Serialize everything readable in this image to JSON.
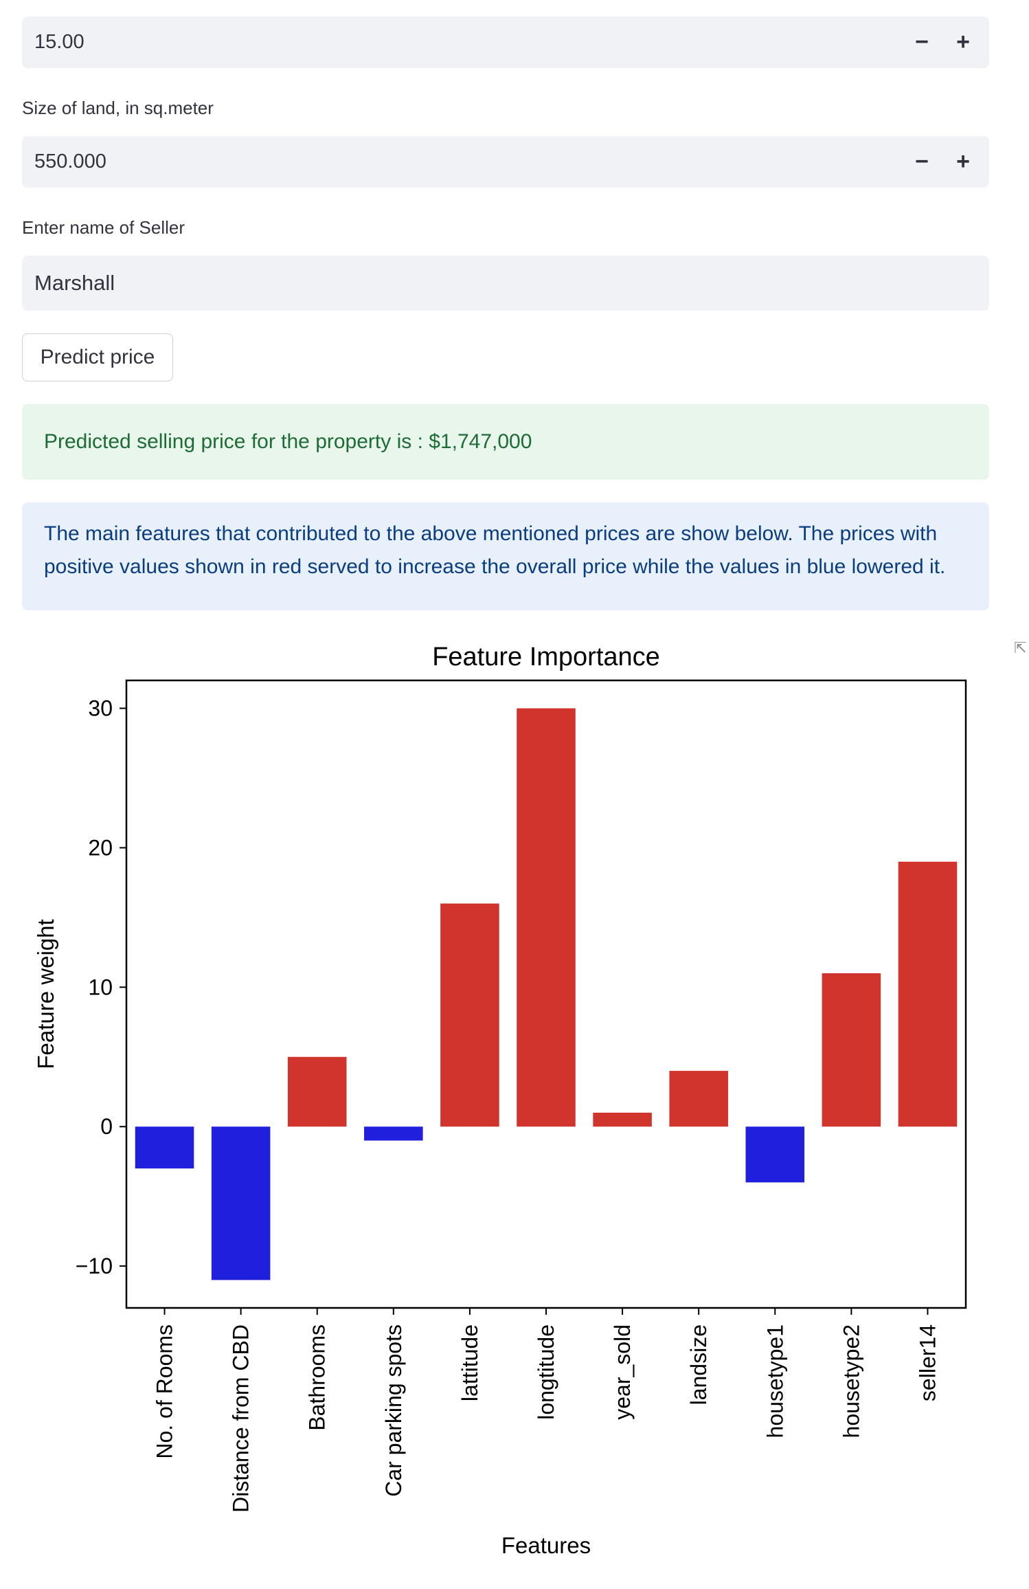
{
  "inputs": {
    "first_value": "15.00",
    "land_label": "Size of land, in sq.meter",
    "land_value": "550.000",
    "seller_label": "Enter name of Seller",
    "seller_value": "Marshall",
    "minus": "−",
    "plus": "+"
  },
  "predict_button": "Predict price",
  "success_message": "Predicted selling price for the property is : $1,747,000",
  "info_message": "The main features that contributed to the above mentioned prices are show below. The prices with positive values shown in red served to increase the overall price while the values in blue lowered it.",
  "colors": {
    "positive": "#d0342c",
    "negative": "#1f1fdc"
  },
  "chart_data": {
    "type": "bar",
    "title": "Feature Importance",
    "xlabel": "Features",
    "ylabel": "Feature weight",
    "categories": [
      "No. of Rooms",
      "Distance from CBD",
      "Bathrooms",
      "Car parking spots",
      "lattitude",
      "longtitude",
      "year_sold",
      "landsize",
      "housetype1",
      "housetype2",
      "seller14"
    ],
    "values": [
      -3,
      -11,
      5,
      -1,
      16,
      30,
      1,
      4,
      -4,
      11,
      19
    ],
    "ylim": [
      -13,
      32
    ],
    "yticks": [
      -10,
      0,
      10,
      20,
      30
    ],
    "ytick_labels": [
      "−10",
      "0",
      "10",
      "20",
      "30"
    ],
    "grid": false
  }
}
